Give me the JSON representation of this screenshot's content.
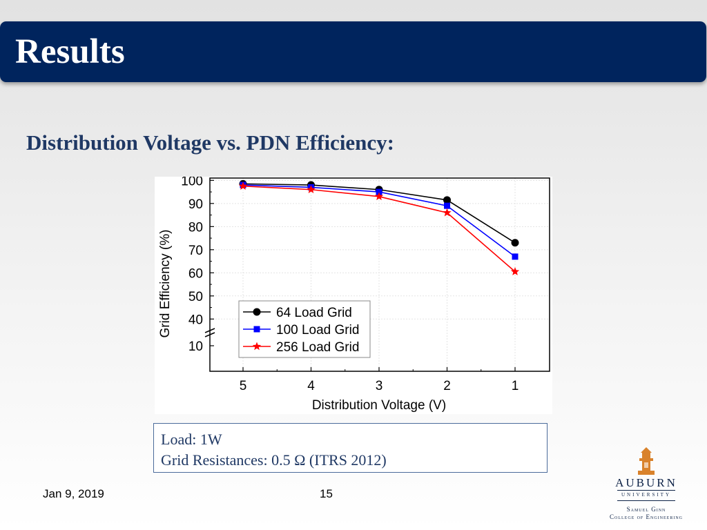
{
  "slide": {
    "title": "Results",
    "subtitle": "Distribution Voltage vs. PDN Efficiency:",
    "info_lines": [
      "Load: 1W",
      "Grid Resistances: 0.5 Ω (ITRS 2012)"
    ],
    "footer_date": "Jan 9, 2019",
    "page_number": "15",
    "logo": {
      "university_name": "AUBURN",
      "university_word": "UNIVERSITY",
      "college_line1": "Samuel Ginn",
      "college_line2": "College of Engineering"
    }
  },
  "colors": {
    "title_bar": "#00245d",
    "subtitle_text": "#1f3864",
    "series_64": "#000000",
    "series_100": "#0000ff",
    "series_256": "#ff0000"
  },
  "chart_data": {
    "type": "line",
    "title": "",
    "xlabel": "Distribution Voltage (V)",
    "ylabel": "Grid Efficiency (%)",
    "categories": [
      "5",
      "4",
      "3",
      "2",
      "1"
    ],
    "y_ticks_upper": [
      40,
      50,
      60,
      70,
      80,
      90,
      100
    ],
    "y_ticks_lower": [
      10
    ],
    "ylim_upper": [
      38,
      101
    ],
    "axis_break": true,
    "grid": true,
    "legend_position": "lower-left",
    "series": [
      {
        "name": "64 Load Grid",
        "marker": "circle",
        "color": "#000000",
        "values": [
          98.5,
          98,
          96,
          91.5,
          73
        ]
      },
      {
        "name": "100 Load Grid",
        "marker": "square",
        "color": "#0000ff",
        "values": [
          98,
          97,
          95,
          89,
          67
        ]
      },
      {
        "name": "256 Load Grid",
        "marker": "star",
        "color": "#ff0000",
        "values": [
          97.5,
          96,
          93,
          86,
          60.5
        ]
      }
    ]
  }
}
